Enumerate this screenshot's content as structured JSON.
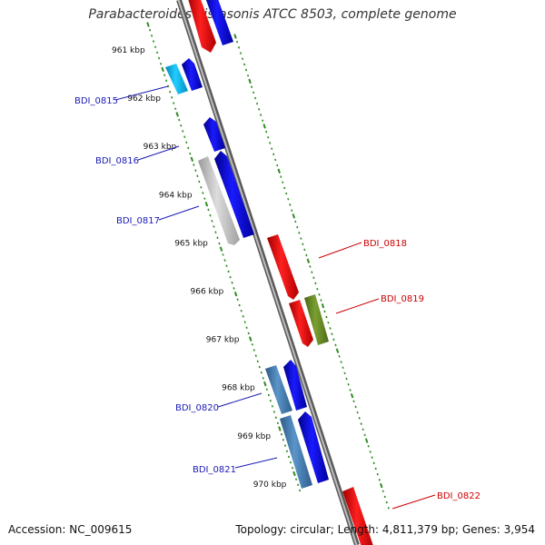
{
  "title": "Parabacteroides distasonis ATCC 8503, complete genome",
  "footer": {
    "accession": "Accession: NC_009615",
    "summary": "Topology: circular; Length: 4,811,379 bp; Genes: 3,954"
  },
  "colors": {
    "backbone": "#8a8a8a",
    "ruler_dash": "#2e8b22",
    "label_forward": "#1a1ab4",
    "label_reverse": "#cc0000"
  },
  "ruler_labels": [
    "961 kbp",
    "962 kbp",
    "963 kbp",
    "964 kbp",
    "965 kbp",
    "966 kbp",
    "967 kbp",
    "968 kbp",
    "969 kbp",
    "970 kbp"
  ],
  "gene_labels": {
    "BDI_0815": "BDI_0815",
    "BDI_0816": "BDI_0816",
    "BDI_0817": "BDI_0817",
    "BDI_0818": "BDI_0818",
    "BDI_0819": "BDI_0819",
    "BDI_0820": "BDI_0820",
    "BDI_0821": "BDI_0821",
    "BDI_0822": "BDI_0822"
  }
}
